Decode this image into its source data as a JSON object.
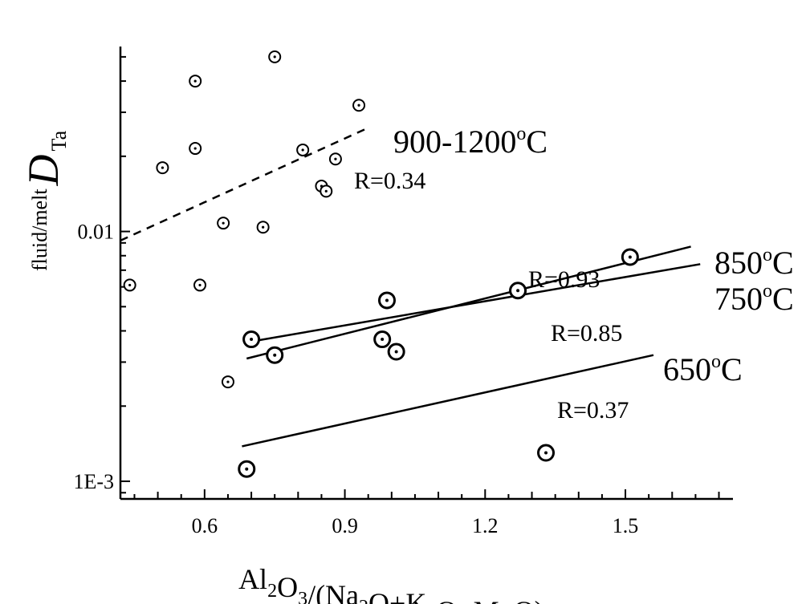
{
  "chart_data": {
    "type": "scatter",
    "xaxis": {
      "label_parts": [
        {
          "t": "Al"
        },
        {
          "t": "2",
          "sub": true
        },
        {
          "t": "O"
        },
        {
          "t": "3",
          "sub": true
        },
        {
          "t": "/(Na"
        },
        {
          "t": "2",
          "sub": true
        },
        {
          "t": "O+K"
        },
        {
          "t": "2",
          "sub": true
        },
        {
          "t": "O+MnO), мол."
        }
      ],
      "range": [
        0.42,
        1.73
      ],
      "ticks": [
        0.6,
        0.9,
        1.2,
        1.5
      ],
      "tick_labels": [
        "0.6",
        "0.9",
        "1.2",
        "1.5"
      ]
    },
    "yaxis": {
      "label_sup": "fluid/melt",
      "label_main": "D",
      "label_sub": "Ta",
      "scale": "log",
      "range": [
        0.00085,
        0.055
      ],
      "ticks": [
        0.001,
        0.01
      ],
      "tick_labels": [
        "1E-3",
        "0.01"
      ]
    },
    "series": [
      {
        "marker": "small-dotted-circle",
        "points": [
          [
            0.75,
            0.05
          ],
          [
            0.58,
            0.04
          ],
          [
            0.93,
            0.032
          ],
          [
            0.58,
            0.0215
          ],
          [
            0.81,
            0.0212
          ],
          [
            0.88,
            0.0195
          ],
          [
            0.51,
            0.018
          ],
          [
            0.85,
            0.0152
          ],
          [
            0.86,
            0.0145
          ],
          [
            0.64,
            0.0108
          ],
          [
            0.725,
            0.0104
          ],
          [
            0.44,
            0.0061
          ],
          [
            0.59,
            0.0061
          ],
          [
            0.65,
            0.0025
          ]
        ]
      },
      {
        "marker": "large-dotted-circle",
        "points": [
          [
            1.51,
            0.0079
          ],
          [
            1.27,
            0.0058
          ],
          [
            0.99,
            0.0053
          ],
          [
            0.7,
            0.0037
          ],
          [
            0.98,
            0.0037
          ],
          [
            1.01,
            0.0033
          ],
          [
            0.75,
            0.0032
          ],
          [
            1.33,
            0.0013
          ],
          [
            0.69,
            0.00112
          ]
        ]
      }
    ],
    "fits": [
      {
        "style": "dashed",
        "x": [
          0.42,
          0.95
        ],
        "y": [
          0.0092,
          0.026
        ],
        "label": "900-1200",
        "deg": "o",
        "unit": "C",
        "r": "R=0.34"
      },
      {
        "style": "solid",
        "x": [
          0.69,
          1.64
        ],
        "y": [
          0.0031,
          0.0087
        ],
        "label": "850",
        "deg": "o",
        "unit": "C",
        "r": "R=0.93"
      },
      {
        "style": "solid",
        "x": [
          0.69,
          1.66
        ],
        "y": [
          0.0036,
          0.0074
        ],
        "label": "750",
        "deg": "o",
        "unit": "C",
        "r": "R=0.85"
      },
      {
        "style": "solid",
        "x": [
          0.68,
          1.56
        ],
        "y": [
          0.00138,
          0.0032
        ],
        "label": "650",
        "deg": "o",
        "unit": "C",
        "r": "R=0.37"
      }
    ],
    "grid": false,
    "legend": "none"
  }
}
